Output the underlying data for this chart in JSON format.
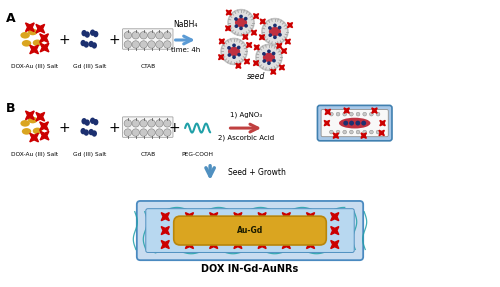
{
  "title": "",
  "background_color": "#ffffff",
  "label_A": "A",
  "label_B": "B",
  "label_dox_au_salt": "DOX-Au (III) Salt",
  "label_gd_salt": "Gd (III) Salt",
  "label_ctab": "CTAB",
  "label_peg_cooh": "PEG-COOH",
  "label_seed": "seed",
  "label_nabh4": "NaBH₄",
  "label_time": "time: 4h",
  "label_agno3": "1) AgNO₃",
  "label_ascorbic": "2) Ascorbic Acid",
  "label_seed_growth": "Seed + Growth",
  "label_au_gd": "Au-Gd",
  "label_dox_in": "DOX IN-Gd-AuNRs",
  "color_gold": "#DAA520",
  "color_red_star": "#CC0000",
  "color_navy": "#1C3070",
  "color_gray": "#A0A0A0",
  "color_light_gray": "#C8C8C8",
  "color_blue_bg": "#A8C8E8",
  "color_light_blue_bg": "#C8DCF0",
  "color_teal_wave": "#20A0A8",
  "color_pink_red": "#C03040",
  "color_arrow_blue": "#5B9BD5",
  "color_arrow_red": "#C04040",
  "color_outer_ring": "#C0C0C0",
  "color_inner_ring_line": "#909090"
}
